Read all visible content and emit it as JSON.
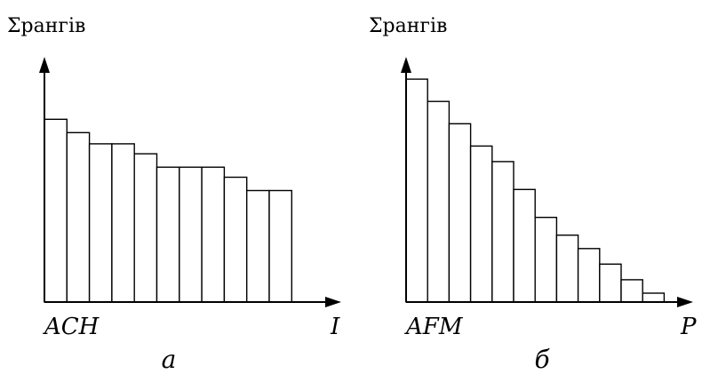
{
  "chart_data": [
    {
      "type": "bar",
      "panel": "а",
      "ylabel": "Σрангів",
      "xlabel": "I",
      "category_labels": "ACH",
      "categories": [
        "",
        "",
        "",
        "",
        "",
        "",
        "",
        "",
        "",
        "",
        ""
      ],
      "values": [
        8.2,
        7.6,
        7.1,
        7.1,
        6.65,
        6.05,
        6.05,
        6.05,
        5.6,
        5.0,
        5.0
      ],
      "ylim": [
        0,
        11
      ],
      "grid": false
    },
    {
      "type": "bar",
      "panel": "б",
      "ylabel": "Σрангів",
      "xlabel": "P",
      "category_labels": "AFM",
      "categories": [
        "",
        "",
        "",
        "",
        "",
        "",
        "",
        "",
        "",
        "",
        "",
        ""
      ],
      "values": [
        10.0,
        9.0,
        8.0,
        7.0,
        6.3,
        5.05,
        3.8,
        3.0,
        2.4,
        1.7,
        1.0,
        0.4
      ],
      "ylim": [
        0,
        11
      ],
      "grid": false
    }
  ]
}
